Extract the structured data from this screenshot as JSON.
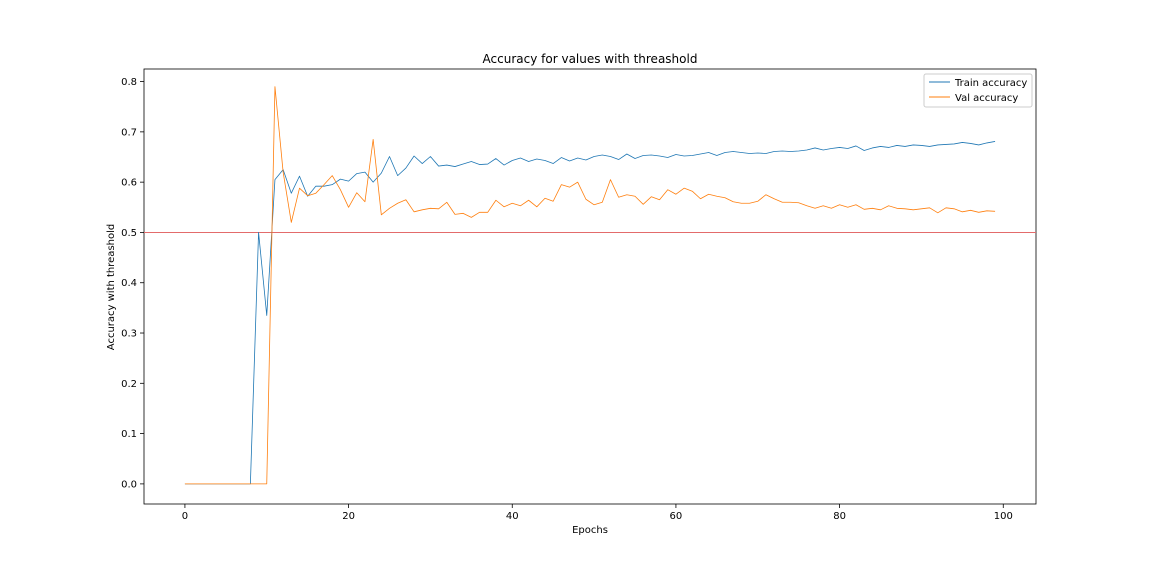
{
  "chart_data": {
    "type": "line",
    "title": "Accuracy for values with threashold",
    "xlabel": "Epochs",
    "ylabel": "Accuracy with threashold",
    "xlim": [
      -5,
      104
    ],
    "ylim": [
      -0.04,
      0.825
    ],
    "x_ticks": [
      0,
      20,
      40,
      60,
      80,
      100
    ],
    "y_ticks": [
      0.0,
      0.1,
      0.2,
      0.3,
      0.4,
      0.5,
      0.6,
      0.7,
      0.8
    ],
    "x_tick_labels": [
      "0",
      "20",
      "40",
      "60",
      "80",
      "100"
    ],
    "y_tick_labels": [
      "0.0",
      "0.1",
      "0.2",
      "0.3",
      "0.4",
      "0.5",
      "0.6",
      "0.7",
      "0.8"
    ],
    "grid": false,
    "legend_position": "top-right",
    "threshold": {
      "value": 0.5,
      "color": "#e36b6b"
    },
    "series": [
      {
        "name": "Train accuracy",
        "color": "#1f77b4",
        "values": [
          0,
          0,
          0,
          0,
          0,
          0,
          0,
          0,
          0,
          0.5,
          0.335,
          0.605,
          0.625,
          0.578,
          0.612,
          0.572,
          0.592,
          0.592,
          0.595,
          0.606,
          0.602,
          0.617,
          0.62,
          0.6,
          0.618,
          0.651,
          0.613,
          0.628,
          0.652,
          0.637,
          0.651,
          0.632,
          0.634,
          0.631,
          0.636,
          0.641,
          0.635,
          0.636,
          0.647,
          0.634,
          0.643,
          0.648,
          0.641,
          0.646,
          0.643,
          0.637,
          0.649,
          0.642,
          0.648,
          0.644,
          0.651,
          0.654,
          0.651,
          0.645,
          0.656,
          0.647,
          0.653,
          0.654,
          0.652,
          0.649,
          0.655,
          0.652,
          0.653,
          0.656,
          0.659,
          0.653,
          0.659,
          0.661,
          0.659,
          0.657,
          0.658,
          0.657,
          0.661,
          0.662,
          0.661,
          0.662,
          0.664,
          0.668,
          0.664,
          0.667,
          0.669,
          0.667,
          0.672,
          0.663,
          0.668,
          0.671,
          0.669,
          0.673,
          0.671,
          0.674,
          0.673,
          0.671,
          0.674,
          0.675,
          0.676,
          0.679,
          0.677,
          0.674,
          0.678,
          0.681
        ]
      },
      {
        "name": "Val accuracy",
        "color": "#ff7f0e",
        "values": [
          0,
          0,
          0,
          0,
          0,
          0,
          0,
          0,
          0,
          0,
          0,
          0.79,
          0.62,
          0.52,
          0.588,
          0.573,
          0.578,
          0.595,
          0.613,
          0.585,
          0.55,
          0.579,
          0.561,
          0.685,
          0.535,
          0.548,
          0.558,
          0.565,
          0.541,
          0.545,
          0.548,
          0.547,
          0.56,
          0.536,
          0.538,
          0.53,
          0.54,
          0.54,
          0.564,
          0.551,
          0.558,
          0.553,
          0.564,
          0.551,
          0.568,
          0.562,
          0.595,
          0.59,
          0.6,
          0.566,
          0.555,
          0.56,
          0.605,
          0.57,
          0.575,
          0.572,
          0.556,
          0.571,
          0.565,
          0.585,
          0.576,
          0.588,
          0.582,
          0.567,
          0.576,
          0.572,
          0.569,
          0.561,
          0.558,
          0.558,
          0.562,
          0.575,
          0.567,
          0.56,
          0.56,
          0.559,
          0.553,
          0.548,
          0.553,
          0.548,
          0.555,
          0.55,
          0.555,
          0.546,
          0.548,
          0.545,
          0.553,
          0.548,
          0.547,
          0.545,
          0.547,
          0.549,
          0.539,
          0.549,
          0.547,
          0.541,
          0.544,
          0.54,
          0.543,
          0.542
        ]
      }
    ]
  }
}
